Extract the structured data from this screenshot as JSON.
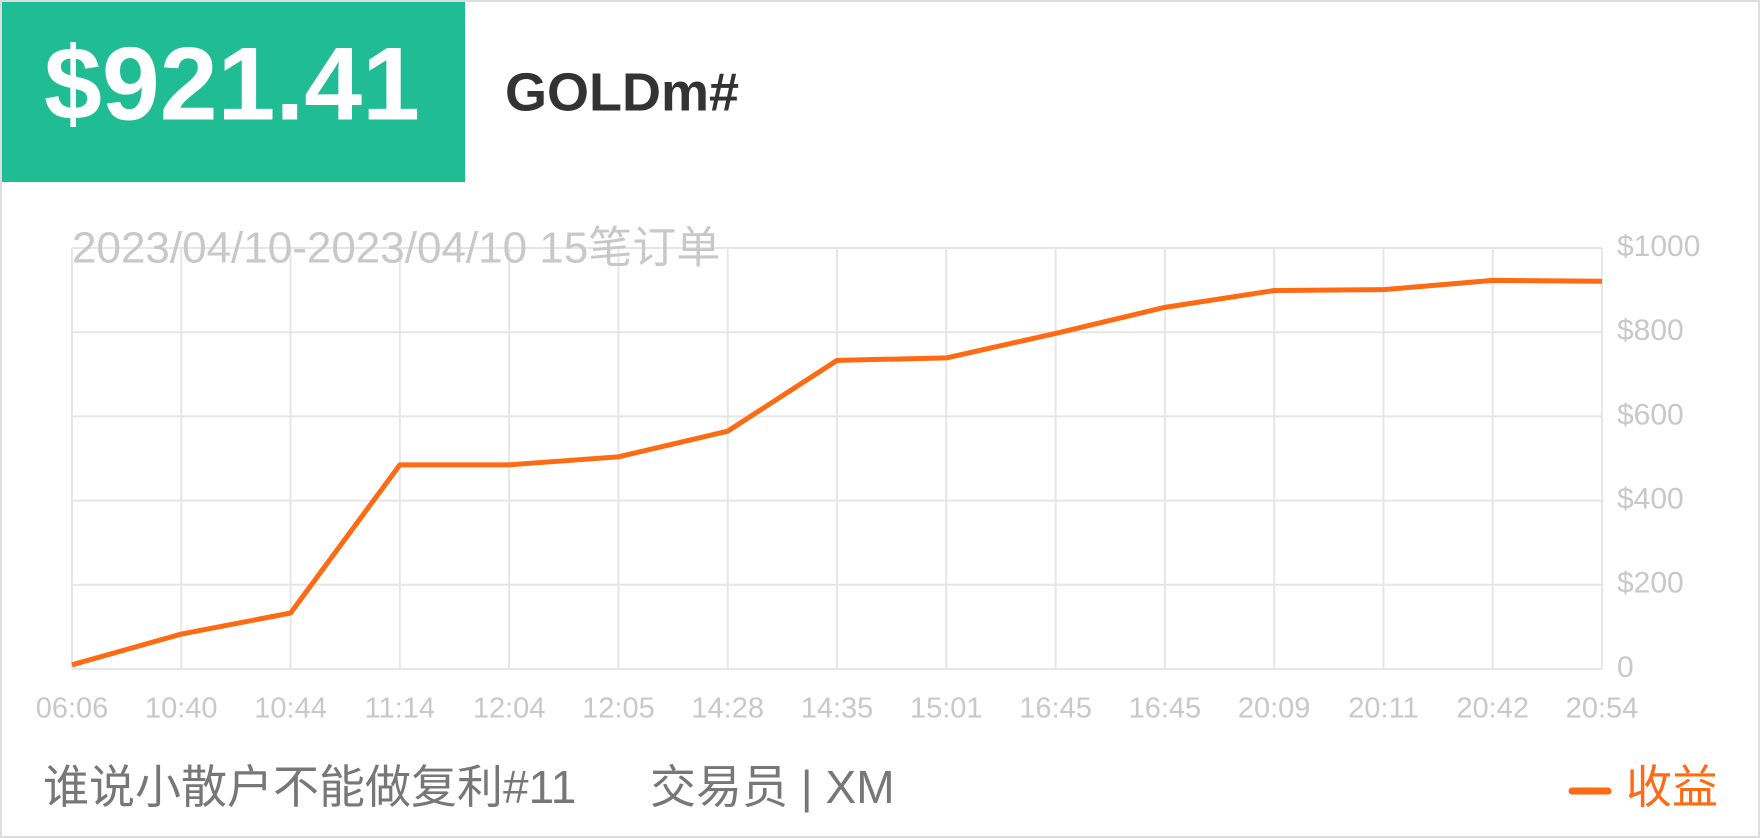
{
  "header": {
    "amount": "$921.41",
    "symbol": "GOLDm#"
  },
  "chart_data": {
    "type": "line",
    "subtitle": "2023/04/10-2023/04/10 15笔订单",
    "categories": [
      "06:06",
      "10:40",
      "10:44",
      "11:14",
      "12:04",
      "12:05",
      "14:28",
      "14:35",
      "15:01",
      "16:45",
      "16:45",
      "20:09",
      "20:11",
      "20:42",
      "20:54"
    ],
    "series": [
      {
        "name": "收益",
        "color": "#ff6a13",
        "values": [
          10,
          83,
          133,
          485,
          485,
          504,
          565,
          733,
          739,
          797,
          859,
          899,
          901,
          923,
          921
        ]
      }
    ],
    "ylim": [
      0,
      1000
    ],
    "yticks": [
      0,
      {
        "value": 200,
        "label": "$200"
      },
      {
        "value": 400,
        "label": "$400"
      },
      {
        "value": 600,
        "label": "$600"
      },
      {
        "value": 800,
        "label": "$800"
      },
      {
        "value": 1000,
        "label": "$1000"
      }
    ],
    "grid": true,
    "legend": "bottom-right"
  },
  "footer": {
    "name": "谁说小散户不能做复利#11",
    "trader": "交易员 | XM"
  }
}
